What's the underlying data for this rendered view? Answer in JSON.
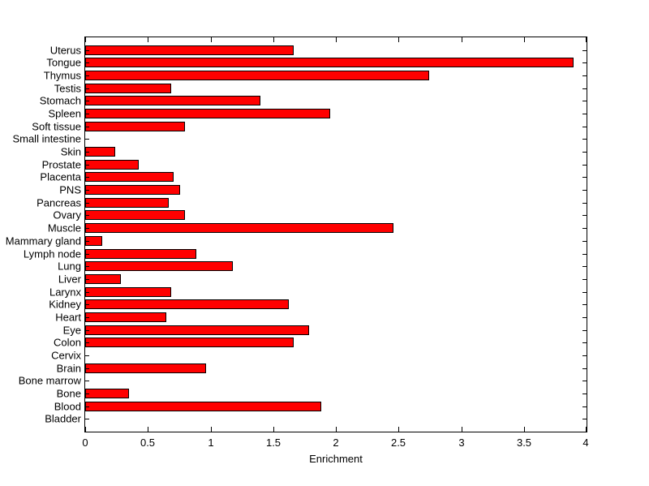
{
  "chart_data": {
    "type": "bar",
    "orientation": "horizontal",
    "title": "",
    "xlabel": "Enrichment",
    "ylabel": "",
    "xlim": [
      0,
      4
    ],
    "xticks": [
      0,
      0.5,
      1,
      1.5,
      2,
      2.5,
      3,
      3.5,
      4
    ],
    "xtick_labels": [
      "0",
      "0.5",
      "1",
      "1.5",
      "2",
      "2.5",
      "3",
      "3.5",
      "4"
    ],
    "categories": [
      "Uterus",
      "Tongue",
      "Thymus",
      "Testis",
      "Stomach",
      "Spleen",
      "Soft tissue",
      "Small intestine",
      "Skin",
      "Prostate",
      "Placenta",
      "PNS",
      "Pancreas",
      "Ovary",
      "Muscle",
      "Mammary gland",
      "Lymph node",
      "Lung",
      "Liver",
      "Larynx",
      "Kidney",
      "Heart",
      "Eye",
      "Colon",
      "Cervix",
      "Brain",
      "Bone marrow",
      "Bone",
      "Blood",
      "Bladder"
    ],
    "values": [
      1.66,
      3.89,
      2.74,
      0.68,
      1.39,
      1.95,
      0.79,
      0,
      0.23,
      0.42,
      0.7,
      0.75,
      0.66,
      0.79,
      2.45,
      0.13,
      0.88,
      1.17,
      0.28,
      0.68,
      1.62,
      0.64,
      1.78,
      1.66,
      0,
      0.96,
      0,
      0.34,
      1.88,
      0
    ],
    "bar_color": "#ff0000",
    "bar_edge_color": "#000000",
    "axis_color": "#000000",
    "background_color": "#ffffff",
    "grid": false,
    "legend": null
  }
}
